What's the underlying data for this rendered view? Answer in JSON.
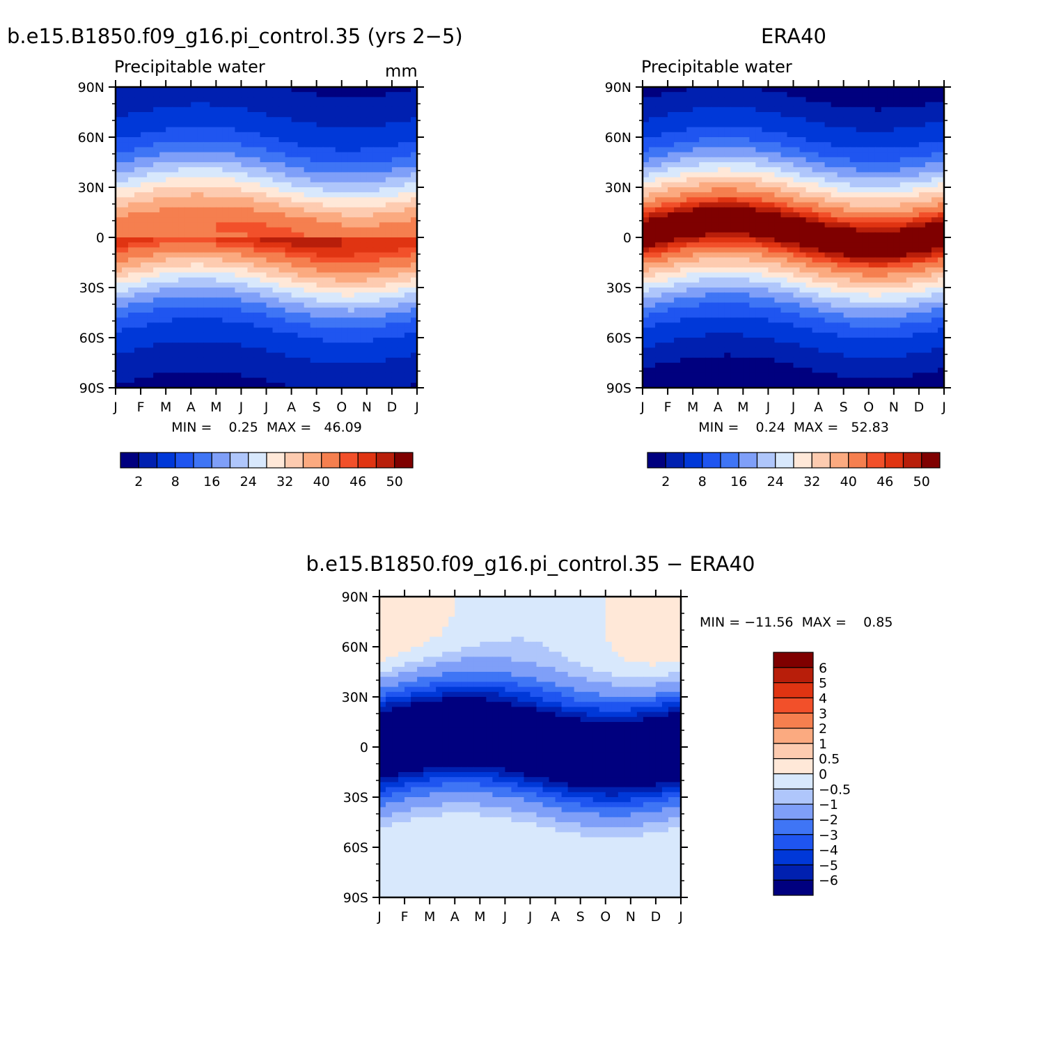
{
  "chart_data": [
    {
      "type": "heatmap",
      "title": "b.e15.B1850.f09_g16.pi_control.35 (yrs 2−5)",
      "subtitle": "Precipitable water",
      "units": "mm",
      "x_tick_labels": [
        "J",
        "F",
        "M",
        "A",
        "M",
        "J",
        "J",
        "A",
        "S",
        "O",
        "N",
        "D",
        "J"
      ],
      "y_tick_labels": [
        "90N",
        "60N",
        "30N",
        "0",
        "30S",
        "60S",
        "90S"
      ],
      "y_values": [
        90,
        60,
        30,
        0,
        -30,
        -60,
        -90
      ],
      "stats": "MIN =    0.25  MAX =   46.09",
      "min": 0.25,
      "max": 46.09,
      "colorbar_labels": [
        "2",
        "8",
        "16",
        "24",
        "32",
        "40",
        "46",
        "50"
      ],
      "colorbar_levels": [
        2,
        4,
        8,
        12,
        16,
        20,
        24,
        28,
        32,
        36,
        40,
        44,
        46,
        48,
        50
      ],
      "field_shape": "model"
    },
    {
      "type": "heatmap",
      "title": "ERA40",
      "subtitle": "Precipitable water",
      "x_tick_labels": [
        "J",
        "F",
        "M",
        "A",
        "M",
        "J",
        "J",
        "A",
        "S",
        "O",
        "N",
        "D",
        "J"
      ],
      "y_tick_labels": [
        "90N",
        "60N",
        "30N",
        "0",
        "30S",
        "60S",
        "90S"
      ],
      "y_values": [
        90,
        60,
        30,
        0,
        -30,
        -60,
        -90
      ],
      "stats": "MIN =    0.24  MAX =   52.83",
      "min": 0.24,
      "max": 52.83,
      "colorbar_labels": [
        "2",
        "8",
        "16",
        "24",
        "32",
        "40",
        "46",
        "50"
      ],
      "colorbar_levels": [
        2,
        4,
        8,
        12,
        16,
        20,
        24,
        28,
        32,
        36,
        40,
        44,
        46,
        48,
        50
      ],
      "field_shape": "obs"
    },
    {
      "type": "heatmap",
      "title": "b.e15.B1850.f09_g16.pi_control.35 − ERA40",
      "x_tick_labels": [
        "J",
        "F",
        "M",
        "A",
        "M",
        "J",
        "J",
        "A",
        "S",
        "O",
        "N",
        "D",
        "J"
      ],
      "y_tick_labels": [
        "90N",
        "60N",
        "30N",
        "0",
        "30S",
        "60S",
        "90S"
      ],
      "y_values": [
        90,
        60,
        30,
        0,
        -30,
        -60,
        -90
      ],
      "stats": "MIN = −11.56  MAX =    0.85",
      "min": -11.56,
      "max": 0.85,
      "colorbar_labels": [
        "6",
        "5",
        "4",
        "3",
        "2",
        "1",
        "0.5",
        "0",
        "−0.5",
        "−1",
        "−2",
        "−3",
        "−4",
        "−5",
        "−6"
      ],
      "colorbar_levels": [
        6,
        5,
        4,
        3,
        2,
        1,
        0.5,
        0,
        -0.5,
        -1,
        -2,
        -3,
        -4,
        -5,
        -6
      ],
      "field_shape": "diff"
    }
  ],
  "colors": {
    "palette": [
      "#00007f",
      "#0020b0",
      "#0038d8",
      "#1f55f0",
      "#3f75f5",
      "#7f9ff8",
      "#afc6fb",
      "#d8e8fc",
      "#ffe8d8",
      "#fdcbb0",
      "#fbaa80",
      "#f57f4f",
      "#f2502a",
      "#e03412",
      "#b81e0a",
      "#7f0000"
    ]
  }
}
